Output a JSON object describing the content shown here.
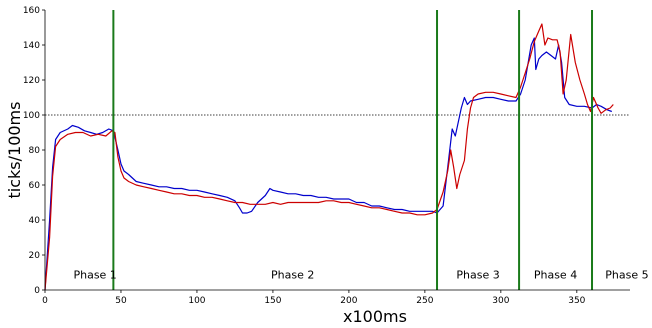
{
  "chart_data": {
    "type": "line",
    "xlabel": "x100ms",
    "ylabel": "ticks/100ms",
    "xlim": [
      0,
      385
    ],
    "ylim": [
      0,
      160
    ],
    "xticks": [
      0,
      50,
      100,
      150,
      200,
      250,
      300,
      350
    ],
    "yticks": [
      0,
      20,
      40,
      60,
      80,
      100,
      120,
      140,
      160
    ],
    "grid": false,
    "reference_line": {
      "y": 100,
      "style": "dotted"
    },
    "phase_boundaries": [
      45,
      258,
      312,
      360
    ],
    "phases": [
      {
        "label": "Phase 1",
        "x": 33
      },
      {
        "label": "Phase 2",
        "x": 163
      },
      {
        "label": "Phase 3",
        "x": 285
      },
      {
        "label": "Phase 4",
        "x": 336
      },
      {
        "label": "Phase 5",
        "x": 383
      }
    ],
    "series": [
      {
        "color": "#0000cc",
        "points": [
          [
            0,
            0
          ],
          [
            3,
            40
          ],
          [
            5,
            70
          ],
          [
            7,
            86
          ],
          [
            10,
            90
          ],
          [
            15,
            92
          ],
          [
            18,
            94
          ],
          [
            22,
            93
          ],
          [
            26,
            91
          ],
          [
            30,
            90
          ],
          [
            34,
            89
          ],
          [
            38,
            90
          ],
          [
            42,
            92
          ],
          [
            45,
            91
          ],
          [
            48,
            80
          ],
          [
            50,
            72
          ],
          [
            52,
            68
          ],
          [
            55,
            66
          ],
          [
            60,
            62
          ],
          [
            65,
            61
          ],
          [
            70,
            60
          ],
          [
            75,
            59
          ],
          [
            80,
            59
          ],
          [
            85,
            58
          ],
          [
            90,
            58
          ],
          [
            95,
            57
          ],
          [
            100,
            57
          ],
          [
            105,
            56
          ],
          [
            110,
            55
          ],
          [
            115,
            54
          ],
          [
            120,
            53
          ],
          [
            125,
            51
          ],
          [
            128,
            47
          ],
          [
            130,
            44
          ],
          [
            133,
            44
          ],
          [
            136,
            45
          ],
          [
            140,
            50
          ],
          [
            145,
            54
          ],
          [
            148,
            58
          ],
          [
            150,
            57
          ],
          [
            155,
            56
          ],
          [
            160,
            55
          ],
          [
            165,
            55
          ],
          [
            170,
            54
          ],
          [
            175,
            54
          ],
          [
            180,
            53
          ],
          [
            185,
            53
          ],
          [
            190,
            52
          ],
          [
            195,
            52
          ],
          [
            200,
            52
          ],
          [
            205,
            50
          ],
          [
            210,
            50
          ],
          [
            215,
            48
          ],
          [
            220,
            48
          ],
          [
            225,
            47
          ],
          [
            230,
            46
          ],
          [
            235,
            46
          ],
          [
            240,
            45
          ],
          [
            245,
            45
          ],
          [
            250,
            45
          ],
          [
            255,
            45
          ],
          [
            258,
            44
          ],
          [
            262,
            48
          ],
          [
            265,
            70
          ],
          [
            268,
            92
          ],
          [
            270,
            88
          ],
          [
            272,
            96
          ],
          [
            274,
            104
          ],
          [
            276,
            110
          ],
          [
            278,
            106
          ],
          [
            280,
            108
          ],
          [
            285,
            109
          ],
          [
            290,
            110
          ],
          [
            295,
            110
          ],
          [
            300,
            109
          ],
          [
            305,
            108
          ],
          [
            310,
            108
          ],
          [
            313,
            112
          ],
          [
            316,
            120
          ],
          [
            318,
            130
          ],
          [
            320,
            140
          ],
          [
            322,
            144
          ],
          [
            323,
            126
          ],
          [
            325,
            132
          ],
          [
            327,
            134
          ],
          [
            330,
            136
          ],
          [
            333,
            134
          ],
          [
            336,
            132
          ],
          [
            338,
            140
          ],
          [
            340,
            130
          ],
          [
            342,
            110
          ],
          [
            345,
            106
          ],
          [
            350,
            105
          ],
          [
            355,
            105
          ],
          [
            360,
            104
          ],
          [
            363,
            106
          ],
          [
            366,
            105
          ],
          [
            370,
            103
          ],
          [
            373,
            102
          ]
        ]
      },
      {
        "color": "#cc0000",
        "points": [
          [
            0,
            0
          ],
          [
            3,
            30
          ],
          [
            5,
            65
          ],
          [
            7,
            82
          ],
          [
            10,
            86
          ],
          [
            15,
            89
          ],
          [
            20,
            90
          ],
          [
            25,
            90
          ],
          [
            30,
            88
          ],
          [
            35,
            89
          ],
          [
            40,
            88
          ],
          [
            44,
            91
          ],
          [
            46,
            90
          ],
          [
            48,
            76
          ],
          [
            50,
            68
          ],
          [
            52,
            64
          ],
          [
            55,
            62
          ],
          [
            60,
            60
          ],
          [
            65,
            59
          ],
          [
            70,
            58
          ],
          [
            75,
            57
          ],
          [
            80,
            56
          ],
          [
            85,
            55
          ],
          [
            90,
            55
          ],
          [
            95,
            54
          ],
          [
            100,
            54
          ],
          [
            105,
            53
          ],
          [
            110,
            53
          ],
          [
            115,
            52
          ],
          [
            120,
            51
          ],
          [
            125,
            50
          ],
          [
            130,
            50
          ],
          [
            135,
            49
          ],
          [
            140,
            49
          ],
          [
            145,
            49
          ],
          [
            150,
            50
          ],
          [
            155,
            49
          ],
          [
            160,
            50
          ],
          [
            165,
            50
          ],
          [
            170,
            50
          ],
          [
            175,
            50
          ],
          [
            180,
            50
          ],
          [
            185,
            51
          ],
          [
            190,
            51
          ],
          [
            195,
            50
          ],
          [
            200,
            50
          ],
          [
            205,
            49
          ],
          [
            210,
            48
          ],
          [
            215,
            47
          ],
          [
            220,
            47
          ],
          [
            225,
            46
          ],
          [
            230,
            45
          ],
          [
            235,
            44
          ],
          [
            240,
            44
          ],
          [
            245,
            43
          ],
          [
            250,
            43
          ],
          [
            255,
            44
          ],
          [
            258,
            46
          ],
          [
            262,
            56
          ],
          [
            265,
            68
          ],
          [
            267,
            80
          ],
          [
            269,
            70
          ],
          [
            271,
            58
          ],
          [
            273,
            66
          ],
          [
            276,
            74
          ],
          [
            278,
            92
          ],
          [
            280,
            104
          ],
          [
            282,
            110
          ],
          [
            285,
            112
          ],
          [
            290,
            113
          ],
          [
            295,
            113
          ],
          [
            300,
            112
          ],
          [
            305,
            111
          ],
          [
            310,
            110
          ],
          [
            313,
            116
          ],
          [
            316,
            124
          ],
          [
            319,
            132
          ],
          [
            322,
            142
          ],
          [
            325,
            148
          ],
          [
            327,
            152
          ],
          [
            329,
            140
          ],
          [
            331,
            144
          ],
          [
            334,
            143
          ],
          [
            337,
            143
          ],
          [
            339,
            136
          ],
          [
            341,
            112
          ],
          [
            343,
            120
          ],
          [
            346,
            146
          ],
          [
            349,
            130
          ],
          [
            352,
            120
          ],
          [
            355,
            112
          ],
          [
            357,
            106
          ],
          [
            359,
            102
          ],
          [
            361,
            110
          ],
          [
            364,
            104
          ],
          [
            366,
            101
          ],
          [
            369,
            103
          ],
          [
            372,
            104
          ],
          [
            374,
            106
          ]
        ]
      }
    ]
  }
}
